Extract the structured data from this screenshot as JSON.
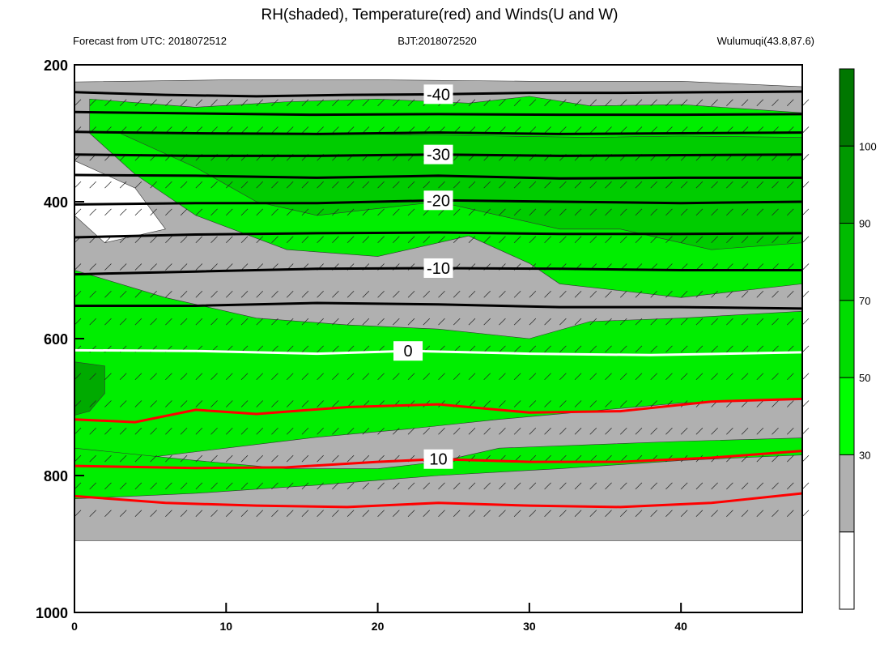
{
  "chart_data": {
    "type": "heatmap",
    "title": "RH(shaded), Temperature(red) and Winds(U and W)",
    "header_left": "Forecast from UTC: 2018072512",
    "header_center": "BJT:2018072520",
    "header_right": "Wulumuqi(43.8,87.6)",
    "x_ticks": [
      "0",
      "10",
      "20",
      "30",
      "40"
    ],
    "y_ticks": [
      "200",
      "400",
      "600",
      "800",
      "1000"
    ],
    "xlim": [
      0,
      48
    ],
    "ylim": [
      200,
      1000
    ],
    "y_reversed": true,
    "colorbar": {
      "levels": [
        "30",
        "50",
        "70",
        "90",
        "100"
      ],
      "colors": [
        "#ffffff",
        "#b0b0b0",
        "#00ff00",
        "#00dd00",
        "#00bb00",
        "#009900",
        "#007700"
      ]
    },
    "temperature_label_color": "#ff0000",
    "freezing_line_color": "#ffffff",
    "isotherms": [
      {
        "label": "-40",
        "color": "#000000",
        "points": [
          [
            0,
            240
          ],
          [
            6,
            244
          ],
          [
            12,
            246
          ],
          [
            18,
            244
          ],
          [
            24,
            243
          ],
          [
            30,
            241
          ],
          [
            36,
            241
          ],
          [
            42,
            240
          ],
          [
            48,
            239
          ]
        ]
      },
      {
        "label": "",
        "color": "#000000",
        "points": [
          [
            0,
            269
          ],
          [
            8,
            271
          ],
          [
            16,
            273
          ],
          [
            24,
            272
          ],
          [
            32,
            273
          ],
          [
            40,
            273
          ],
          [
            48,
            272
          ]
        ]
      },
      {
        "label": "",
        "color": "#000000",
        "points": [
          [
            0,
            298
          ],
          [
            8,
            300
          ],
          [
            16,
            301
          ],
          [
            24,
            299
          ],
          [
            32,
            301
          ],
          [
            40,
            300
          ],
          [
            48,
            299
          ]
        ]
      },
      {
        "label": "-30",
        "color": "#000000",
        "points": [
          [
            0,
            331
          ],
          [
            8,
            333
          ],
          [
            16,
            333
          ],
          [
            24,
            331
          ],
          [
            32,
            333
          ],
          [
            40,
            332
          ],
          [
            48,
            331
          ]
        ]
      },
      {
        "label": "",
        "color": "#000000",
        "points": [
          [
            0,
            361
          ],
          [
            8,
            362
          ],
          [
            16,
            365
          ],
          [
            24,
            362
          ],
          [
            32,
            366
          ],
          [
            40,
            365
          ],
          [
            48,
            365
          ]
        ]
      },
      {
        "label": "-20",
        "color": "#000000",
        "points": [
          [
            0,
            404
          ],
          [
            8,
            402
          ],
          [
            16,
            402
          ],
          [
            24,
            398
          ],
          [
            32,
            400
          ],
          [
            40,
            402
          ],
          [
            48,
            400
          ]
        ]
      },
      {
        "label": "",
        "color": "#000000",
        "points": [
          [
            0,
            452
          ],
          [
            8,
            448
          ],
          [
            16,
            446
          ],
          [
            24,
            445
          ],
          [
            32,
            447
          ],
          [
            40,
            447
          ],
          [
            48,
            446
          ]
        ]
      },
      {
        "label": "-10",
        "color": "#000000",
        "points": [
          [
            0,
            506
          ],
          [
            8,
            502
          ],
          [
            16,
            498
          ],
          [
            24,
            497
          ],
          [
            32,
            498
          ],
          [
            40,
            500
          ],
          [
            48,
            500
          ]
        ]
      },
      {
        "label": "",
        "color": "#000000",
        "points": [
          [
            0,
            552
          ],
          [
            8,
            552
          ],
          [
            16,
            548
          ],
          [
            24,
            550
          ],
          [
            32,
            554
          ],
          [
            40,
            554
          ],
          [
            48,
            556
          ]
        ]
      },
      {
        "label": "0",
        "color": "#ffffff",
        "points": [
          [
            0,
            617
          ],
          [
            8,
            618
          ],
          [
            16,
            622
          ],
          [
            22,
            618
          ],
          [
            30,
            622
          ],
          [
            38,
            624
          ],
          [
            48,
            620
          ]
        ]
      },
      {
        "label": "",
        "color": "#ff0000",
        "points": [
          [
            0,
            718
          ],
          [
            4,
            722
          ],
          [
            8,
            704
          ],
          [
            12,
            710
          ],
          [
            18,
            700
          ],
          [
            24,
            696
          ],
          [
            30,
            708
          ],
          [
            36,
            706
          ],
          [
            42,
            692
          ],
          [
            48,
            688
          ]
        ]
      },
      {
        "label": "10",
        "color": "#ff0000",
        "points": [
          [
            0,
            786
          ],
          [
            8,
            789
          ],
          [
            14,
            788
          ],
          [
            20,
            780
          ],
          [
            24,
            776
          ],
          [
            30,
            780
          ],
          [
            36,
            780
          ],
          [
            42,
            774
          ],
          [
            48,
            764
          ]
        ]
      },
      {
        "label": "",
        "color": "#ff0000",
        "points": [
          [
            0,
            830
          ],
          [
            6,
            840
          ],
          [
            12,
            844
          ],
          [
            18,
            846
          ],
          [
            24,
            840
          ],
          [
            30,
            844
          ],
          [
            36,
            846
          ],
          [
            42,
            840
          ],
          [
            48,
            826
          ]
        ]
      }
    ],
    "rh_levels_shown": [
      "gray",
      "light-green",
      "green",
      "dark-green"
    ]
  }
}
